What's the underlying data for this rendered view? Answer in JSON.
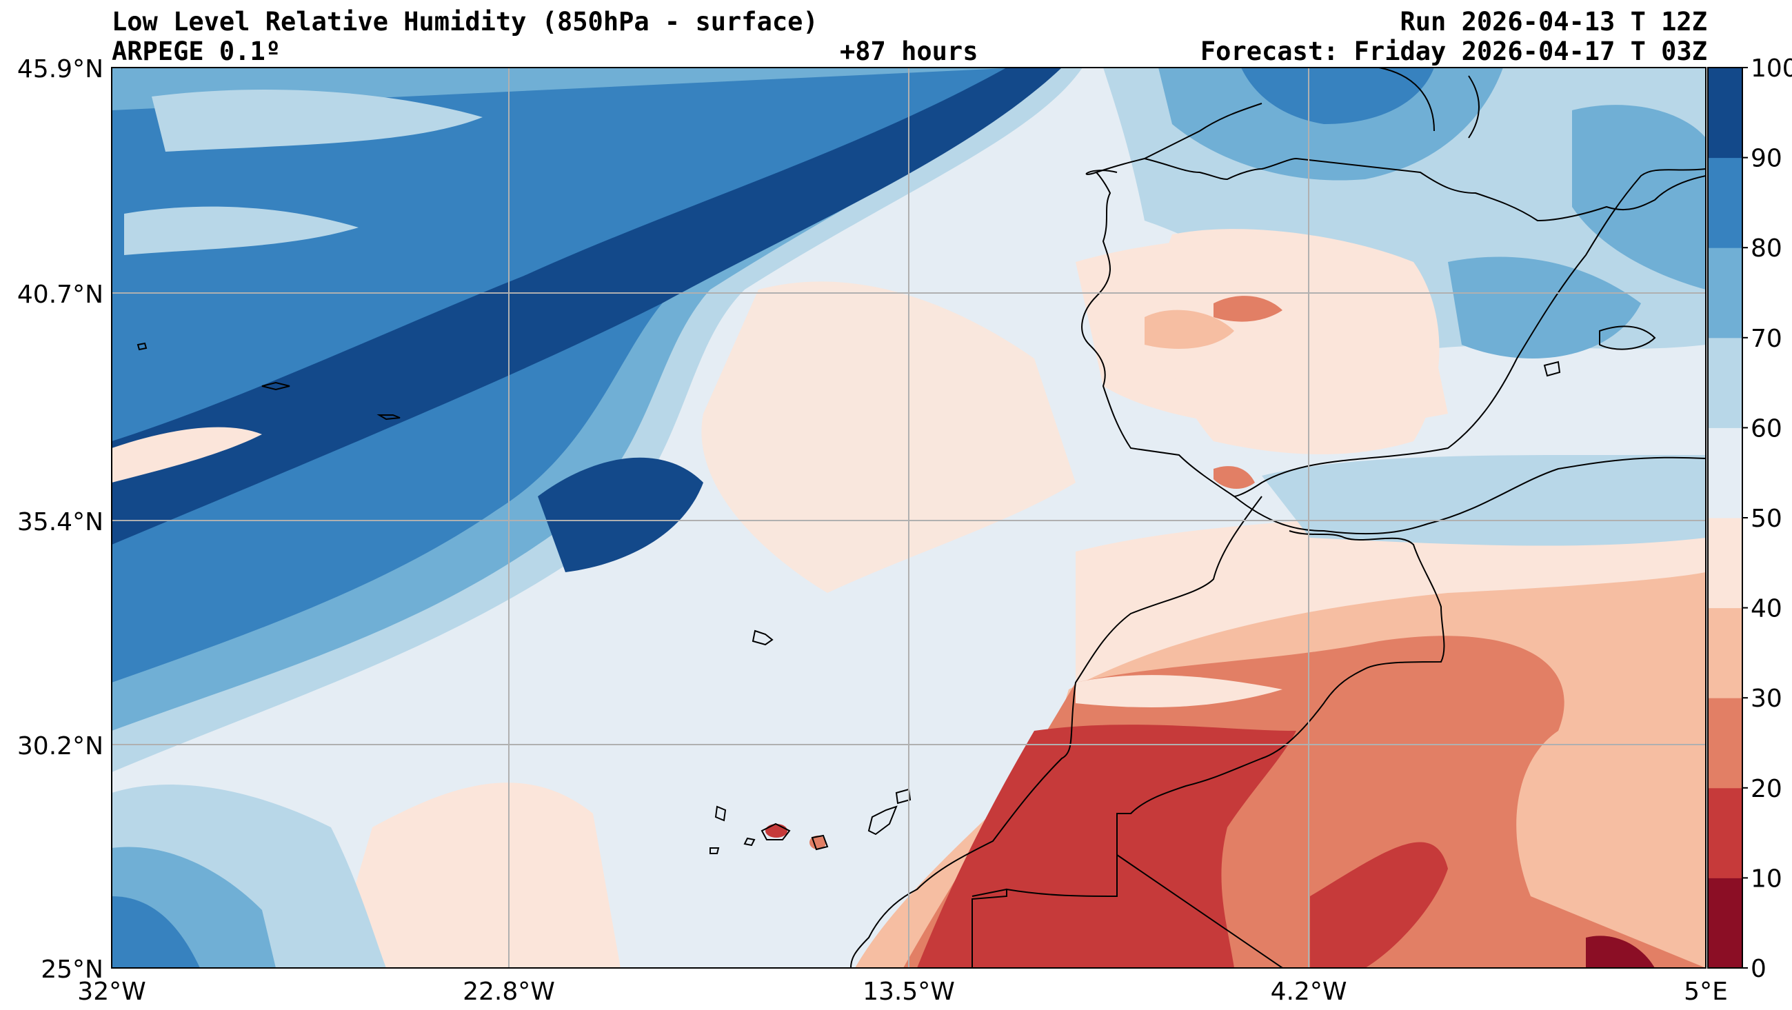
{
  "header": {
    "title": "Low Level Relative Humidity (850hPa - surface)",
    "model": "ARPEGE 0.1º",
    "lead_time": "+87 hours",
    "run": "Run 2026-04-13 T 12Z",
    "forecast": "Forecast: Friday 2026-04-17 T 03Z"
  },
  "axes": {
    "lat_labels": [
      "45.9°N",
      "40.7°N",
      "35.4°N",
      "30.2°N",
      "25°N"
    ],
    "lon_labels": [
      "32°W",
      "22.8°W",
      "13.5°W",
      "4.2°W",
      "5°E"
    ]
  },
  "colorbar": {
    "levels": [
      "0",
      "10",
      "20",
      "30",
      "40",
      "50",
      "60",
      "70",
      "80",
      "90",
      "100"
    ],
    "colors": [
      "#8b0e25",
      "#c63a3a",
      "#e27f65",
      "#f6bea2",
      "#fbe5da",
      "#e5edf4",
      "#b8d7e8",
      "#70afd5",
      "#3782bf",
      "#13498a"
    ]
  },
  "map": {
    "lon_range": [
      -32,
      5
    ],
    "lat_range": [
      25,
      45.9
    ],
    "grid": true
  }
}
